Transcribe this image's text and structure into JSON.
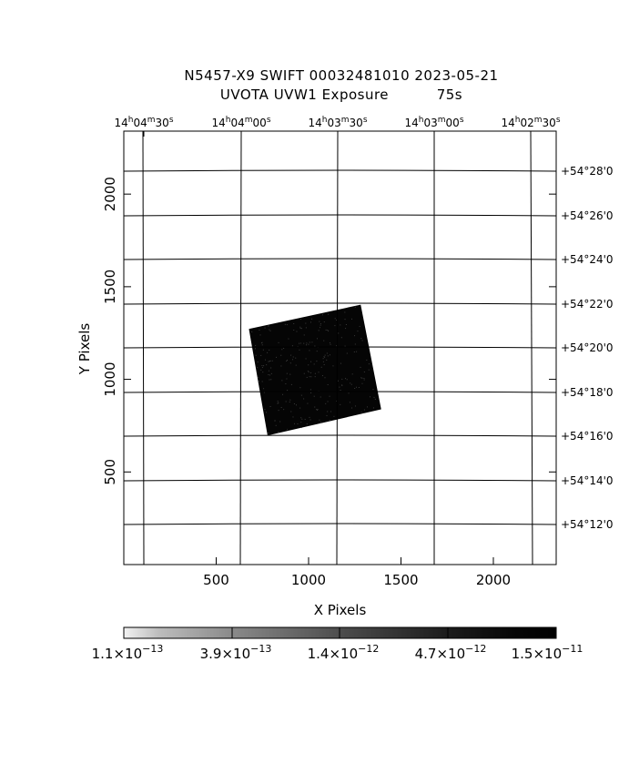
{
  "header": {
    "title_line1": "N5457-X9 SWIFT 00032481010 2023-05-21",
    "title_line2": "UVOTA UVW1 Exposure          75s"
  },
  "chart_data": {
    "type": "heatmap",
    "xlabel": "X Pixels",
    "ylabel": "Y Pixels",
    "xlim": [
      0,
      2340
    ],
    "ylim": [
      0,
      2340
    ],
    "x_ticks": [
      500,
      1000,
      1500,
      2000
    ],
    "y_ticks": [
      500,
      1000,
      1500,
      2000
    ],
    "ra_ticks": [
      {
        "h": "14",
        "m": "04",
        "s": "30"
      },
      {
        "h": "14",
        "m": "04",
        "s": "00"
      },
      {
        "h": "14",
        "m": "03",
        "s": "30"
      },
      {
        "h": "14",
        "m": "03",
        "s": "00"
      },
      {
        "h": "14",
        "m": "02",
        "s": "30"
      }
    ],
    "dec_ticks": [
      "+54°28'0",
      "+54°26'0",
      "+54°24'0",
      "+54°22'0",
      "+54°20'0",
      "+54°18'0",
      "+54°16'0",
      "+54°14'0",
      "+54°12'0"
    ],
    "exposure_region_corners": [
      [
        680,
        1270
      ],
      [
        1280,
        1400
      ],
      [
        1390,
        840
      ],
      [
        780,
        700
      ]
    ],
    "colorbar": {
      "scale": "log",
      "tick_labels": [
        {
          "mant": "1.1",
          "exp": "−13"
        },
        {
          "mant": "3.9",
          "exp": "−13"
        },
        {
          "mant": "1.4",
          "exp": "−12"
        },
        {
          "mant": "4.7",
          "exp": "−12"
        },
        {
          "mant": "1.5",
          "exp": "−11"
        }
      ],
      "color_low": "#f2f2f2",
      "color_high": "#000000"
    },
    "grid": true
  }
}
